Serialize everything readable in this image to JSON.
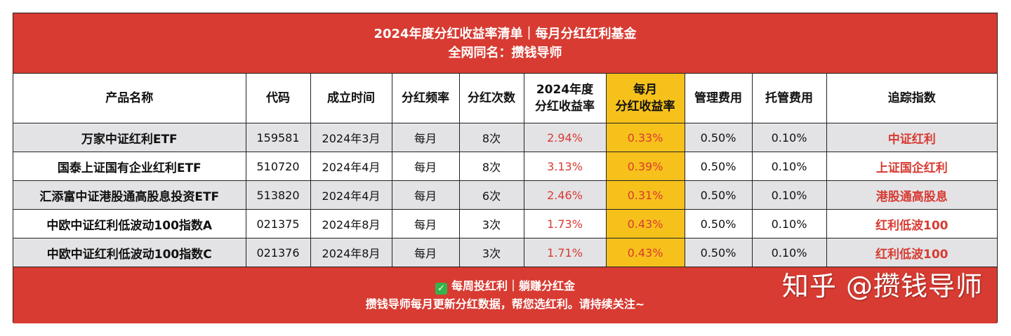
{
  "header": {
    "title": "2024年度分红收益率清单｜每月分红红利基金",
    "subtitle": "全网同名：攒钱导师"
  },
  "table": {
    "columns": [
      "产品名称",
      "代码",
      "成立时间",
      "分红频率",
      "分红次数",
      [
        "2024年度",
        "分红收益率"
      ],
      [
        "每月",
        "分红收益率"
      ],
      "管理费用",
      "托管费用",
      "追踪指数"
    ],
    "rows": [
      {
        "name": "万家中证红利ETF",
        "code": "159581",
        "founded": "2024年3月",
        "freq": "每月",
        "count": "8次",
        "annual": "2.94%",
        "monthly": "0.33%",
        "mgmt": "0.50%",
        "custody": "0.10%",
        "index": "中证红利"
      },
      {
        "name": "国泰上证国有企业红利ETF",
        "code": "510720",
        "founded": "2024年4月",
        "freq": "每月",
        "count": "8次",
        "annual": "3.13%",
        "monthly": "0.39%",
        "mgmt": "0.50%",
        "custody": "0.10%",
        "index": "上证国企红利"
      },
      {
        "name": "汇添富中证港股通高股息投资ETF",
        "code": "513820",
        "founded": "2024年4月",
        "freq": "每月",
        "count": "6次",
        "annual": "2.46%",
        "monthly": "0.31%",
        "mgmt": "0.50%",
        "custody": "0.10%",
        "index": "港股通高股息"
      },
      {
        "name": "中欧中证红利低波动100指数A",
        "code": "021375",
        "founded": "2024年8月",
        "freq": "每月",
        "count": "3次",
        "annual": "1.73%",
        "monthly": "0.43%",
        "mgmt": "0.50%",
        "custody": "0.10%",
        "index": "红利低波100"
      },
      {
        "name": "中欧中证红利低波动100指数C",
        "code": "021376",
        "founded": "2024年8月",
        "freq": "每月",
        "count": "3次",
        "annual": "1.71%",
        "monthly": "0.43%",
        "mgmt": "0.50%",
        "custody": "0.10%",
        "index": "红利低波100"
      }
    ]
  },
  "footer": {
    "check_icon": "✓",
    "line1": "每周投红利｜躺赚分红金",
    "line2": "攒钱导师每月更新分红数据，帮您选红利。请持续关注~",
    "watermark": "知乎 @攒钱导师"
  },
  "colors": {
    "brand_red": "#d83b32",
    "highlight_yellow": "#f7c11b",
    "row_shade": "#e3e3e6",
    "check_green": "#35b34a"
  }
}
